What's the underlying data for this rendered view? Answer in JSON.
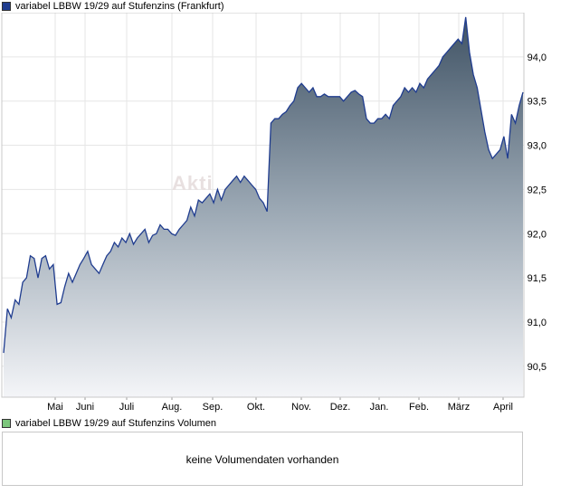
{
  "legend": {
    "price_label": "variabel LBBW 19/29 auf Stufenzins (Frankfurt)",
    "volume_label": "variabel LBBW 19/29 auf Stufenzins Volumen",
    "price_color": "#1f3c8f",
    "volume_color": "#7cc67c"
  },
  "watermark": "Akti",
  "volume": {
    "message": "keine Volumendaten vorhanden"
  },
  "chart_data": {
    "type": "area",
    "title": "variabel LBBW 19/29 auf Stufenzins (Frankfurt)",
    "xlabel": "",
    "ylabel": "",
    "x_ticks": [
      "Mai",
      "Juni",
      "Juli",
      "Aug.",
      "Sep.",
      "Okt.",
      "Nov.",
      "Dez.",
      "Jan.",
      "Feb.",
      "März",
      "April"
    ],
    "y_ticks": [
      "90,5",
      "91,0",
      "91,5",
      "92,0",
      "92,5",
      "93,0",
      "93,5",
      "94,0"
    ],
    "ylim": [
      90.15,
      94.5
    ],
    "grid": true,
    "legend": "top-left",
    "line_color": "#1f3c8f",
    "series": [
      {
        "values": [
          90.65,
          91.15,
          91.05,
          91.25,
          91.2,
          91.45,
          91.5,
          91.75,
          91.72,
          91.5,
          91.72,
          91.75,
          91.6,
          91.65,
          91.2,
          91.22,
          91.4,
          91.55,
          91.45,
          91.55,
          91.65,
          91.72,
          91.8,
          91.65,
          91.6,
          91.55,
          91.65,
          91.75,
          91.8,
          91.9,
          91.85,
          91.95,
          91.9,
          92.0,
          91.88,
          91.95,
          92.0,
          92.05,
          91.9,
          91.98,
          92.0,
          92.1,
          92.05,
          92.05,
          92.0,
          91.98,
          92.05,
          92.1,
          92.15,
          92.3,
          92.2,
          92.38,
          92.35,
          92.4,
          92.45,
          92.35,
          92.5,
          92.38,
          92.5,
          92.55,
          92.6,
          92.65,
          92.58,
          92.65,
          92.6,
          92.55,
          92.5,
          92.4,
          92.35,
          92.25,
          93.25,
          93.3,
          93.3,
          93.35,
          93.38,
          93.45,
          93.5,
          93.65,
          93.7,
          93.65,
          93.6,
          93.65,
          93.55,
          93.55,
          93.58,
          93.55,
          93.55,
          93.55,
          93.55,
          93.5,
          93.55,
          93.6,
          93.62,
          93.58,
          93.55,
          93.3,
          93.25,
          93.25,
          93.3,
          93.3,
          93.35,
          93.3,
          93.45,
          93.5,
          93.55,
          93.65,
          93.6,
          93.65,
          93.6,
          93.7,
          93.65,
          93.75,
          93.8,
          93.85,
          93.9,
          94.0,
          94.05,
          94.1,
          94.15,
          94.2,
          94.15,
          94.45,
          94.05,
          93.8,
          93.65,
          93.4,
          93.15,
          92.95,
          92.85,
          92.9,
          92.95,
          93.1,
          92.85,
          93.35,
          93.25,
          93.45,
          93.6
        ]
      }
    ]
  }
}
